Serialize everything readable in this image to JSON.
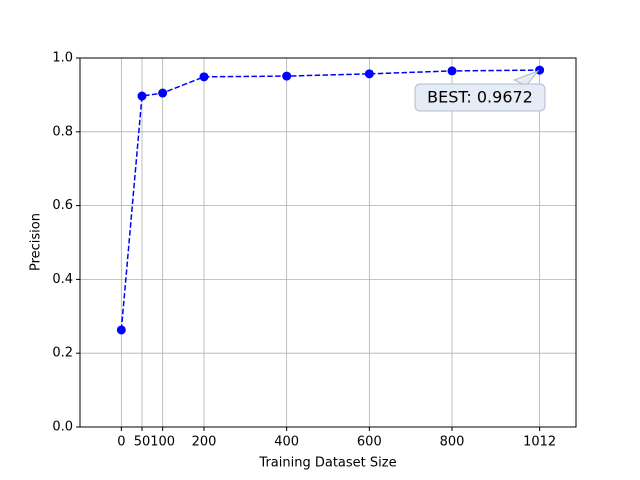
{
  "chart_data": {
    "type": "line",
    "x_label": "Training Dataset Size",
    "y_label": "Precision",
    "x": [
      0,
      50,
      100,
      200,
      400,
      600,
      800,
      1012
    ],
    "series": [
      {
        "color": "#0000ff",
        "values": [
          0.263,
          0.897,
          0.905,
          0.949,
          0.951,
          0.957,
          0.965,
          0.9672
        ]
      }
    ],
    "xlim": [
      -100,
      1100
    ],
    "ylim": [
      0,
      1
    ],
    "xticks": [
      0,
      50,
      100,
      200,
      400,
      600,
      800,
      1012
    ],
    "yticks": [
      {
        "value": 0,
        "label": "0.0"
      },
      0.2,
      0.4,
      0.6,
      0.8,
      {
        "value": 1,
        "label": "1.0"
      }
    ],
    "grid": true,
    "line_style": "dashed",
    "annotation": "BEST: 0.9672"
  }
}
